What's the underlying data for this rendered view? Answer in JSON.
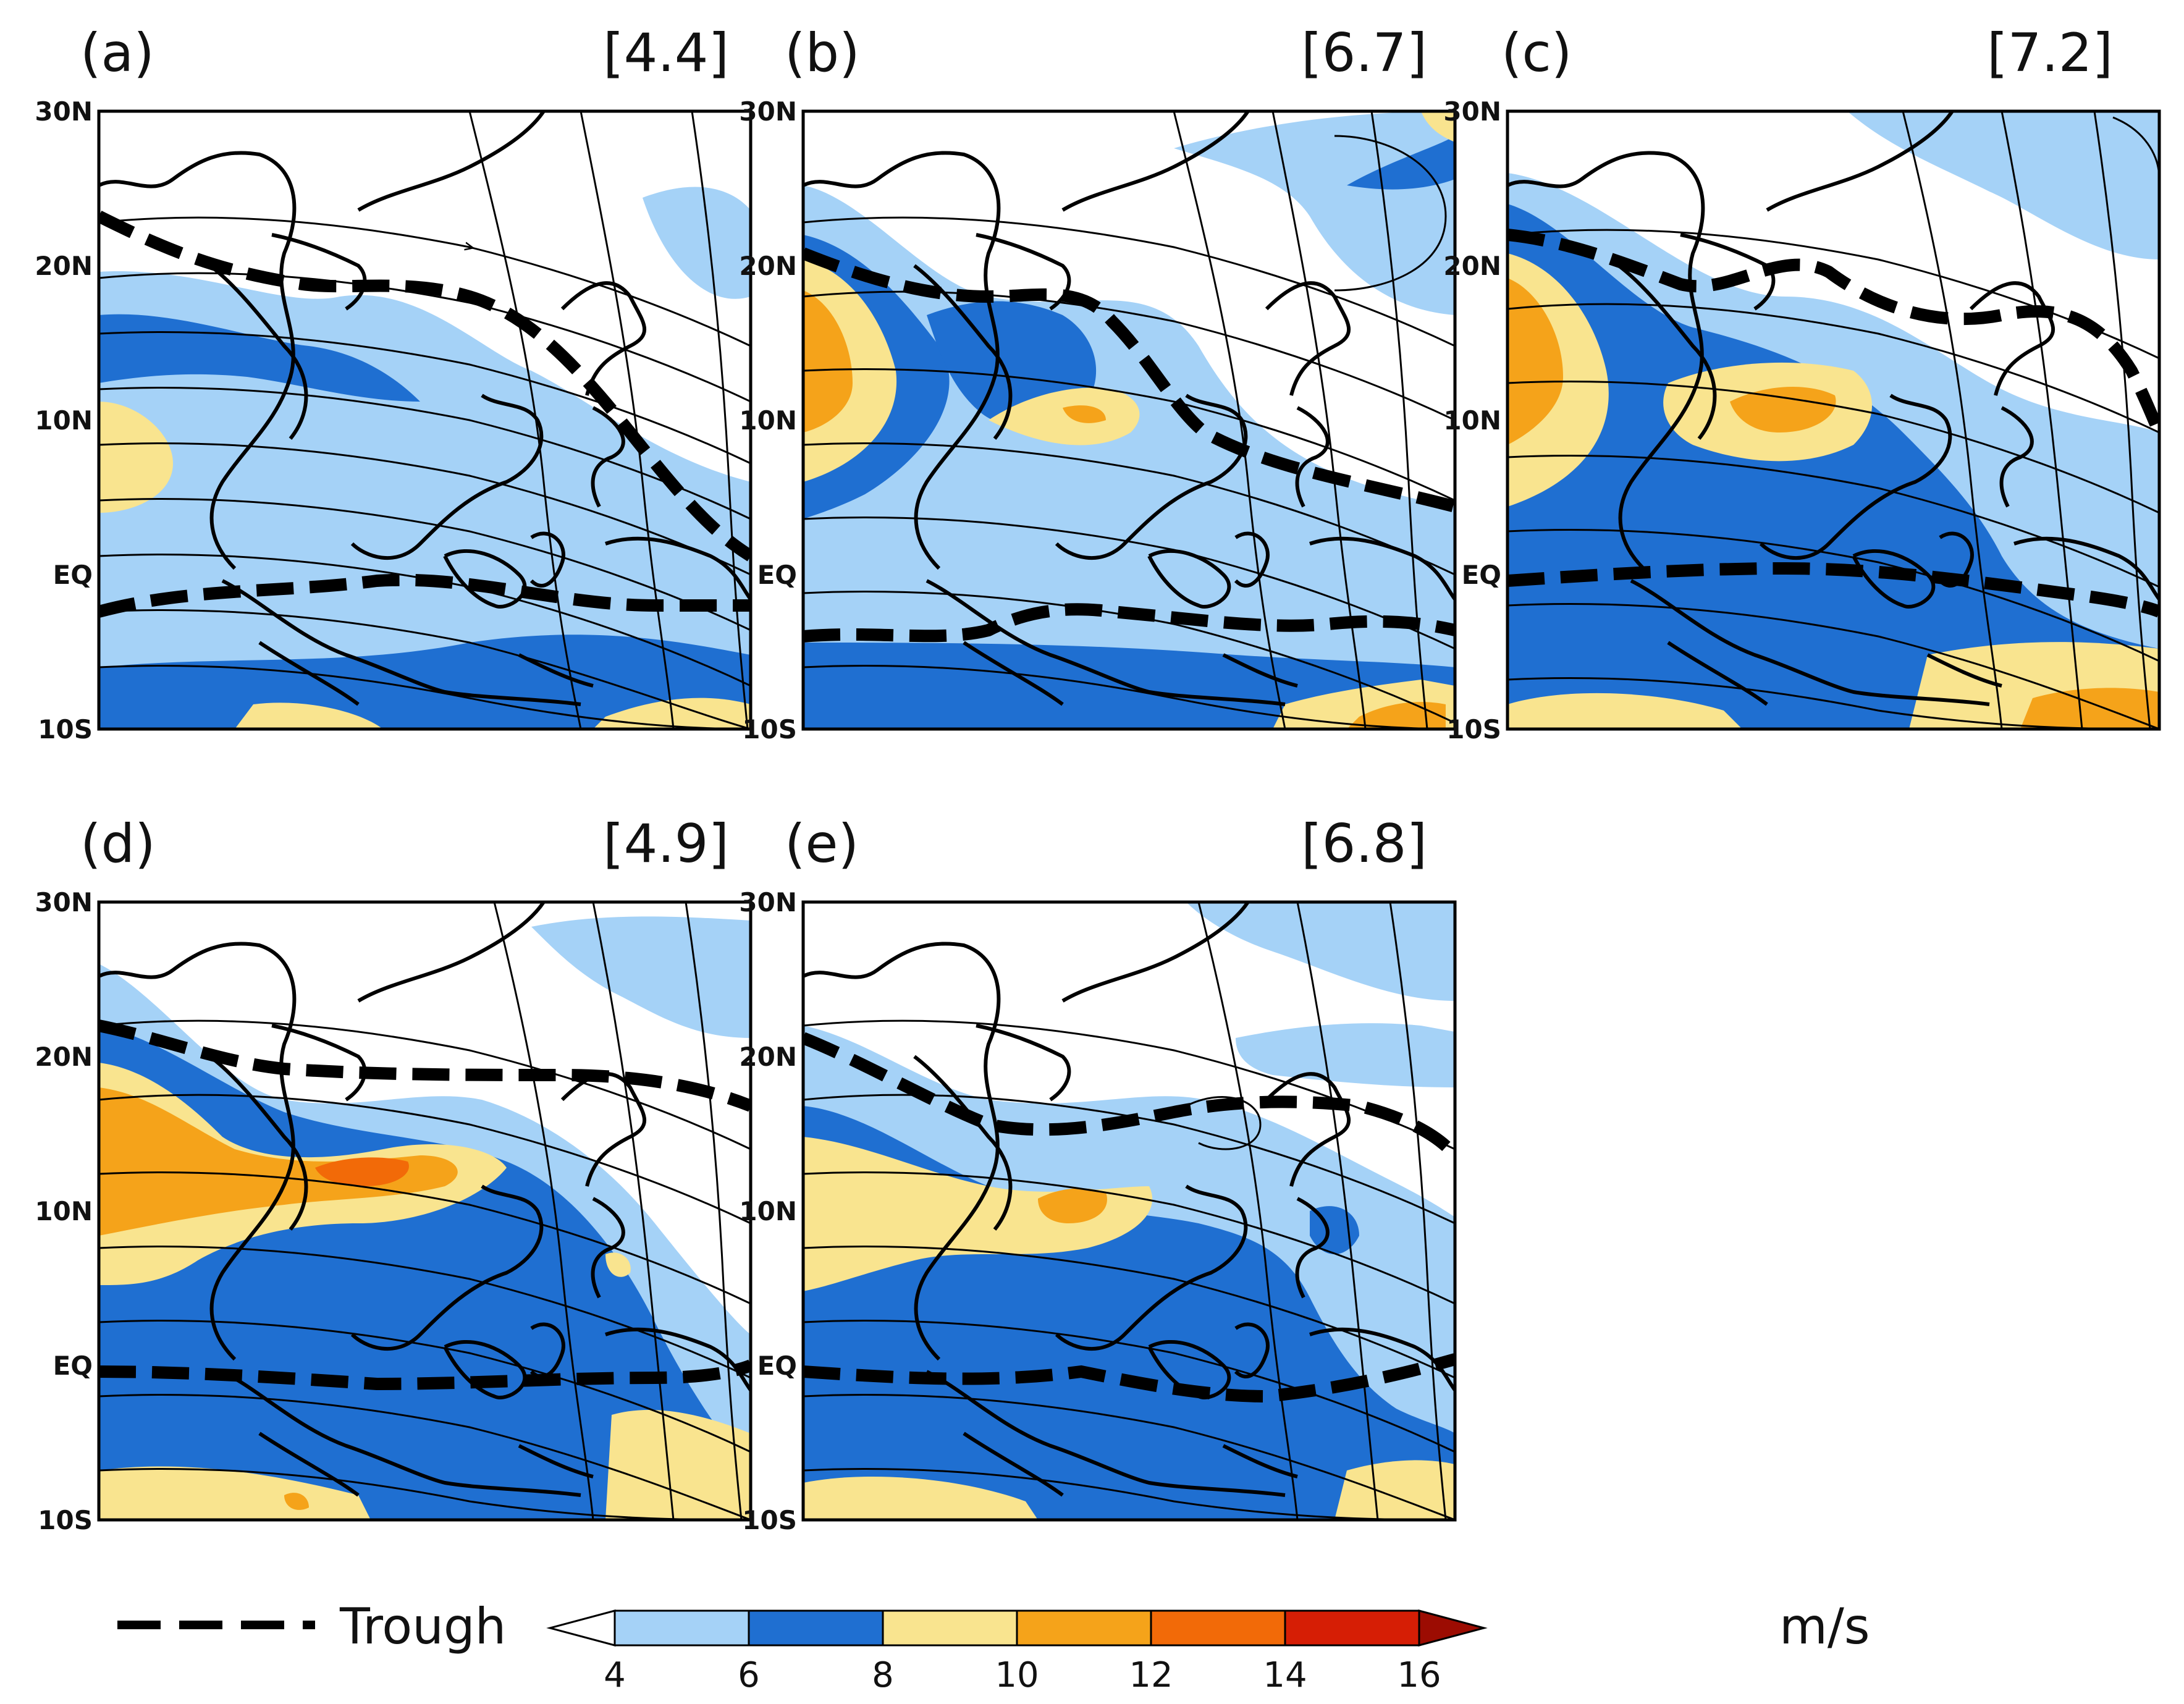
{
  "panels": [
    {
      "label": "(a)",
      "value": "[4.4]"
    },
    {
      "label": "(b)",
      "value": "[6.7]"
    },
    {
      "label": "(c)",
      "value": "[7.2]"
    },
    {
      "label": "(d)",
      "value": "[4.9]"
    },
    {
      "label": "(e)",
      "value": "[6.8]"
    }
  ],
  "lat_labels": [
    "30N",
    "20N",
    "10N",
    "EQ",
    "10S"
  ],
  "legend": {
    "trough_label": "Trough",
    "unit": "m/s",
    "ticks": [
      "4",
      "6",
      "8",
      "10",
      "12",
      "14",
      "16"
    ],
    "colors": {
      "below_4": "#ffffff",
      "4_6": "#a5d2f7",
      "6_8": "#1f6fd1",
      "8_10": "#f9e48f",
      "10_12": "#f5a31a",
      "12_14": "#f26a08",
      "14_16": "#d61e05",
      "above_16": "#9c0c02"
    }
  },
  "colors": {
    "trough_line": "#000000",
    "coast": "#000000",
    "streamline": "#000000"
  }
}
